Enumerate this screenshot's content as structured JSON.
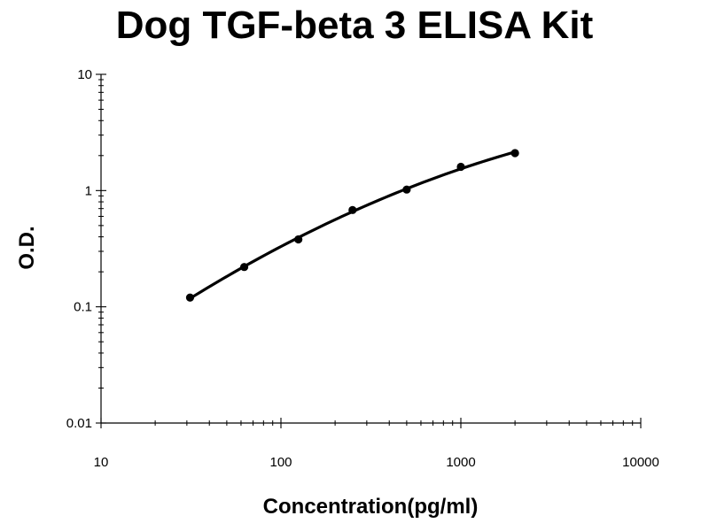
{
  "chart_data": {
    "type": "scatter",
    "title": "Dog TGF-beta 3 ELISA Kit",
    "xlabel": "Concentration(pg/ml)",
    "ylabel": "O.D.",
    "x_scale": "log",
    "y_scale": "log",
    "xlim": [
      10,
      10000
    ],
    "ylim": [
      0.01,
      10
    ],
    "x_tick_labels": [
      "10",
      "100",
      "1000",
      "10000"
    ],
    "y_tick_labels": [
      "0.01",
      "0.1",
      "1",
      "10"
    ],
    "x_ticks": [
      10,
      100,
      1000,
      10000
    ],
    "y_ticks": [
      0.01,
      0.1,
      1,
      10
    ],
    "grid": false,
    "legend": "none",
    "series": [
      {
        "points": [
          {
            "x": 31.25,
            "y": 0.12
          },
          {
            "x": 62.5,
            "y": 0.22
          },
          {
            "x": 125,
            "y": 0.38
          },
          {
            "x": 250,
            "y": 0.68
          },
          {
            "x": 500,
            "y": 1.02
          },
          {
            "x": 1000,
            "y": 1.6
          },
          {
            "x": 2000,
            "y": 2.1
          }
        ],
        "fit_curve": true,
        "color": "#000000"
      }
    ]
  }
}
